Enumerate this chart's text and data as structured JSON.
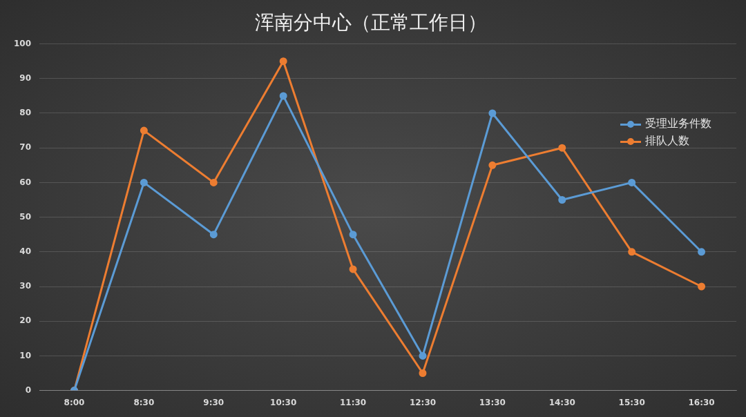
{
  "chart_data": {
    "type": "line",
    "title": "浑南分中心（正常工作日）",
    "categories": [
      "8:00",
      "8:30",
      "9:30",
      "10:30",
      "11:30",
      "12:30",
      "13:30",
      "14:30",
      "15:30",
      "16:30"
    ],
    "series": [
      {
        "name": "受理业务件数",
        "color": "#5b9bd5",
        "values": [
          0,
          60,
          45,
          85,
          45,
          10,
          80,
          55,
          60,
          40
        ]
      },
      {
        "name": "排队人数",
        "color": "#ed7d31",
        "values": [
          0,
          75,
          60,
          95,
          35,
          5,
          65,
          70,
          40,
          30
        ]
      }
    ],
    "ylim": [
      0,
      100
    ],
    "yticks": [
      0,
      10,
      20,
      30,
      40,
      50,
      60,
      70,
      80,
      90,
      100
    ],
    "grid": "y",
    "legend": "right",
    "marker": "circle",
    "line_style": "solid"
  }
}
